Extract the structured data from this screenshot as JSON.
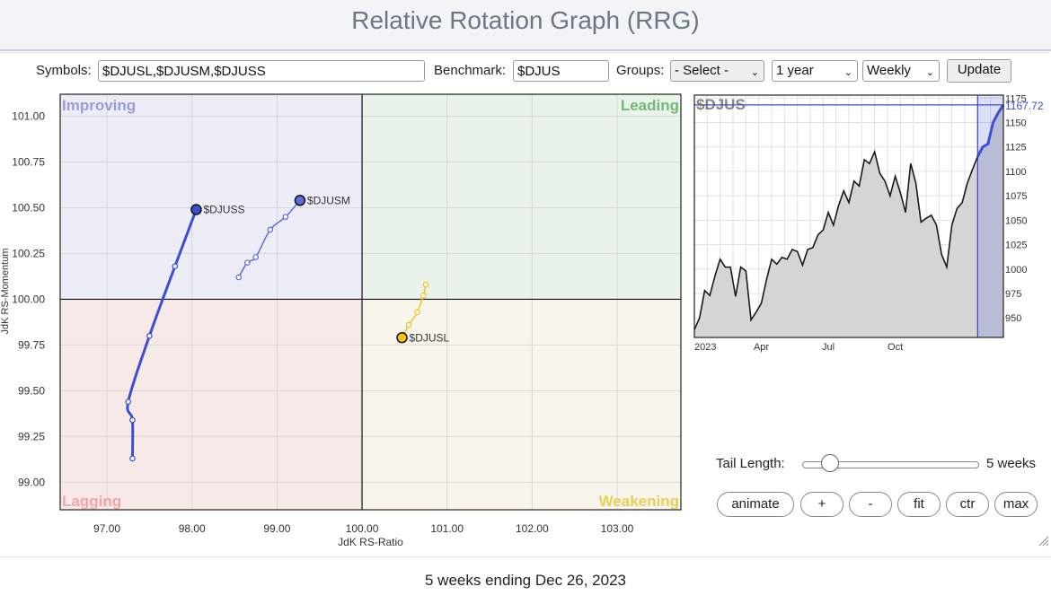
{
  "page": {
    "title": "Relative Rotation Graph (RRG)"
  },
  "toolbar": {
    "symbols_label": "Symbols:",
    "symbols_value": "$DJUSL,$DJUSM,$DJUSS",
    "benchmark_label": "Benchmark:",
    "benchmark_value": "$DJUS",
    "groups_label": "Groups:",
    "groups_selected": "- Select -",
    "period_selected": "1 year",
    "frequency_selected": "Weekly",
    "update_label": "Update"
  },
  "chart_data": [
    {
      "type": "scatter",
      "title": "",
      "xlabel": "JdK RS-Ratio",
      "ylabel": "JdK RS-Momentum",
      "xlim": [
        96.45,
        103.75
      ],
      "ylim": [
        98.85,
        101.12
      ],
      "xticks": [
        "97.00",
        "98.00",
        "99.00",
        "100.00",
        "101.00",
        "102.00",
        "103.00"
      ],
      "yticks": [
        "99.00",
        "99.25",
        "99.50",
        "99.75",
        "100.00",
        "100.25",
        "100.50",
        "100.75",
        "101.00"
      ],
      "grid": true,
      "quadrants": [
        {
          "name": "Improving",
          "position": "top-left",
          "color": "#8a8fd8",
          "fill": "#ededf7"
        },
        {
          "name": "Leading",
          "position": "top-right",
          "color": "#5fb05f",
          "fill": "#e9f3e9"
        },
        {
          "name": "Lagging",
          "position": "bottom-left",
          "color": "#ee9a9a",
          "fill": "#f8e9e9"
        },
        {
          "name": "Weakening",
          "position": "bottom-right",
          "color": "#e8c83a",
          "fill": "#f8f6ec"
        }
      ],
      "series": [
        {
          "name": "$DJUSS",
          "color": "#3a4fd6",
          "width": 3,
          "points": [
            [
              97.3,
              99.13
            ],
            [
              97.3,
              99.34
            ],
            [
              97.25,
              99.44
            ],
            [
              97.5,
              99.8
            ],
            [
              97.8,
              100.18
            ],
            [
              98.05,
              100.49
            ]
          ]
        },
        {
          "name": "$DJUSM",
          "color": "#5a6be0",
          "width": 1.5,
          "points": [
            [
              98.55,
              100.12
            ],
            [
              98.65,
              100.2
            ],
            [
              98.75,
              100.23
            ],
            [
              98.92,
              100.38
            ],
            [
              99.1,
              100.45
            ],
            [
              99.27,
              100.54
            ]
          ]
        },
        {
          "name": "$DJUSL",
          "color": "#f3c318",
          "width": 1.5,
          "points": [
            [
              100.75,
              100.08
            ],
            [
              100.72,
              100.02
            ],
            [
              100.65,
              99.93
            ],
            [
              100.55,
              99.86
            ],
            [
              100.47,
              99.79
            ]
          ]
        }
      ]
    },
    {
      "type": "line",
      "title": "$DJUS",
      "xlabel": "",
      "ylabel": "",
      "ylim": [
        930,
        1178
      ],
      "yticks": [
        "1175",
        "1150",
        "1125",
        "1100",
        "1075",
        "1050",
        "1025",
        "1000",
        "975",
        "950"
      ],
      "xticks": [
        "2023",
        "Apr",
        "Jul",
        "Oct"
      ],
      "last_value_label": "1167.72",
      "series": [
        {
          "name": "$DJUS",
          "values": [
            938,
            950,
            978,
            973,
            993,
            1010,
            1002,
            1002,
            972,
            1002,
            998,
            948,
            956,
            965,
            989,
            1010,
            1005,
            1012,
            1010,
            1020,
            1018,
            1004,
            1020,
            1022,
            1035,
            1040,
            1058,
            1045,
            1065,
            1080,
            1068,
            1090,
            1085,
            1112,
            1108,
            1120,
            1098,
            1090,
            1075,
            1095,
            1078,
            1058,
            1108,
            1088,
            1048,
            1052,
            1055,
            1045,
            1015,
            1002,
            1045,
            1062,
            1068,
            1088,
            1102,
            1115,
            1125,
            1128,
            1150,
            1160,
            1168
          ]
        }
      ]
    }
  ],
  "controls": {
    "tail_length_label": "Tail Length:",
    "tail_length_value": "5 weeks",
    "tail_length_weeks": 5,
    "buttons": [
      "animate",
      "+",
      "-",
      "fit",
      "ctr",
      "max"
    ]
  },
  "footer": {
    "status": "5 weeks ending Dec 26, 2023"
  }
}
